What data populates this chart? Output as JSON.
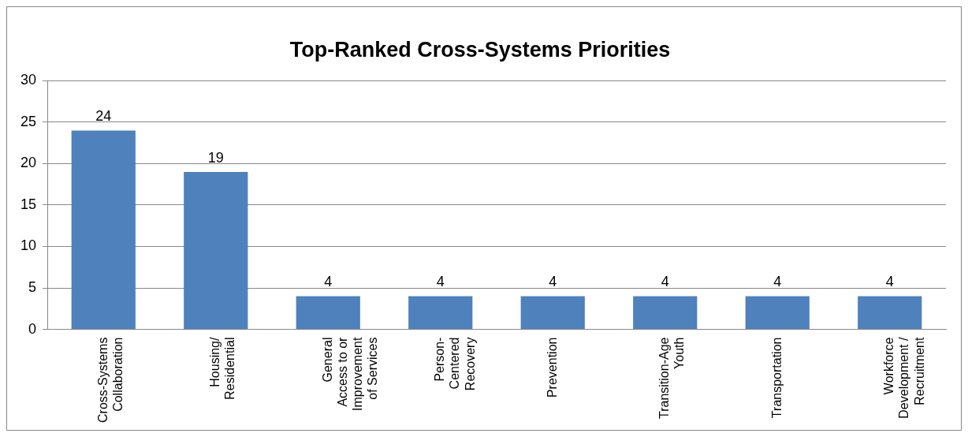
{
  "chart_data": {
    "type": "bar",
    "title": "Top-Ranked Cross-Systems Priorities",
    "categories": [
      "Cross-Systems\nCollaboration",
      "Housing/\nResidential",
      "General\nAccess to or\nImprovement\nof Services",
      "Person-\nCentered\nRecovery",
      "Prevention",
      "Transition-Age\nYouth",
      "Transportation",
      "Workforce\nDevelopment /\nRecruitment"
    ],
    "values": [
      24,
      19,
      4,
      4,
      4,
      4,
      4,
      4
    ],
    "color": "#4f81bd",
    "ylim": [
      0,
      30
    ],
    "yticks": [
      0,
      5,
      10,
      15,
      20,
      25,
      30
    ],
    "grid": "y",
    "data_labels": true,
    "legend": false
  }
}
